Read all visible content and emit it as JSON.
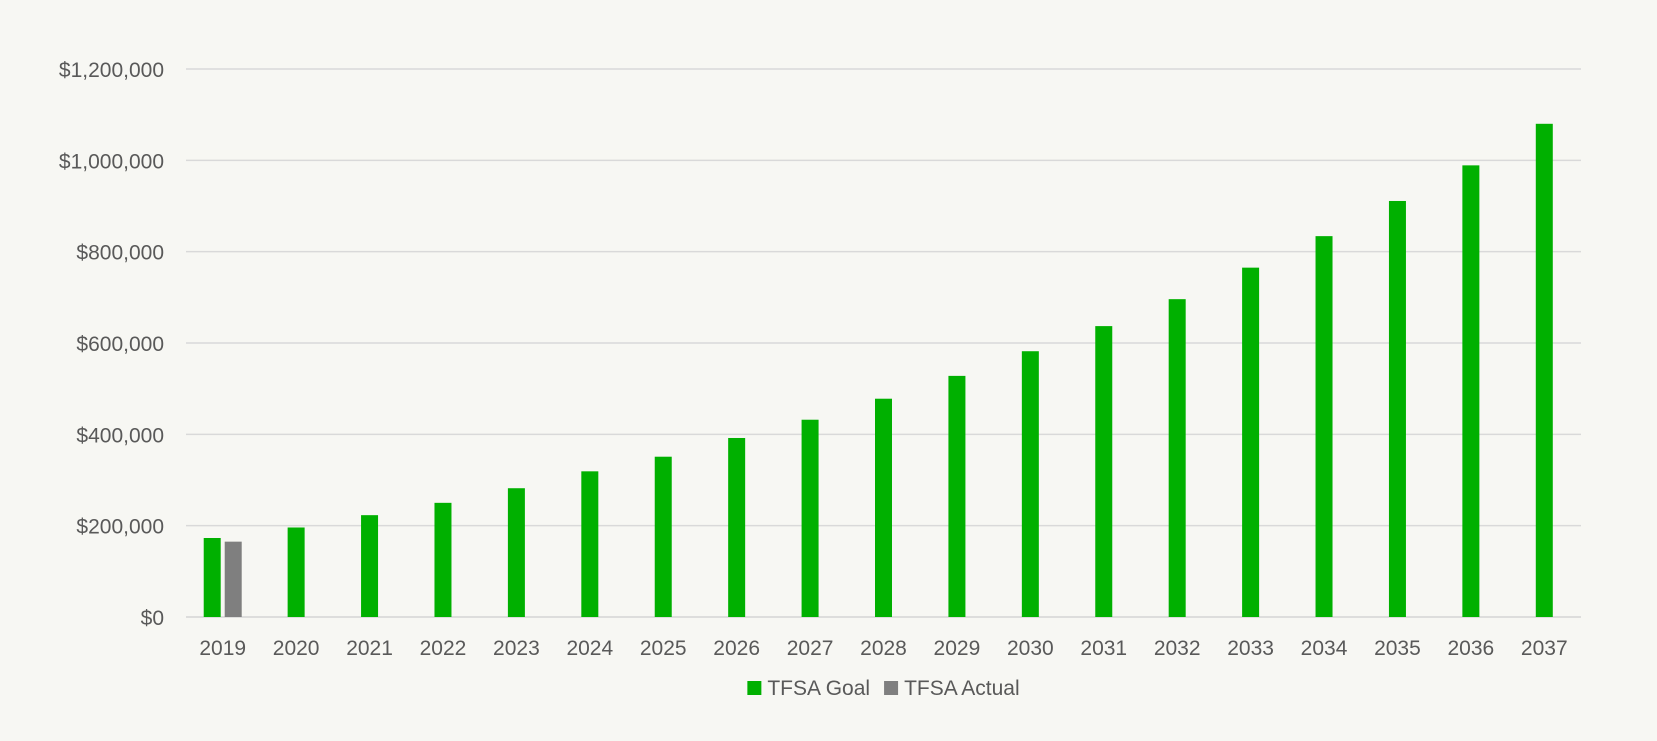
{
  "chart_data": {
    "type": "bar",
    "title": "",
    "xlabel": "",
    "ylabel": "",
    "categories": [
      "2019",
      "2020",
      "2021",
      "2022",
      "2023",
      "2024",
      "2025",
      "2026",
      "2027",
      "2028",
      "2029",
      "2030",
      "2031",
      "2032",
      "2033",
      "2034",
      "2035",
      "2036",
      "2037"
    ],
    "series": [
      {
        "name": "TFSA Goal",
        "color": "#00b000",
        "values": [
          173000,
          196000,
          223000,
          250000,
          282000,
          319000,
          351000,
          392000,
          432000,
          478000,
          528000,
          582000,
          637000,
          696000,
          765000,
          834000,
          911000,
          989000,
          1080000
        ]
      },
      {
        "name": "TFSA Actual",
        "color": "#7f7f7f",
        "values": [
          165000,
          null,
          null,
          null,
          null,
          null,
          null,
          null,
          null,
          null,
          null,
          null,
          null,
          null,
          null,
          null,
          null,
          null,
          null
        ]
      }
    ],
    "ylim": [
      0,
      1200000
    ],
    "yticks": [
      0,
      200000,
      400000,
      600000,
      800000,
      1000000,
      1200000
    ],
    "ytick_labels": [
      "$0",
      "$200,000",
      "$400,000",
      "$600,000",
      "$800,000",
      "$1,000,000",
      "$1,200,000"
    ],
    "grid": true,
    "legend_position": "bottom-center",
    "colors": {
      "background": "#f7f7f3",
      "gridline": "#d9d9d9",
      "axis_text": "#595959"
    }
  }
}
